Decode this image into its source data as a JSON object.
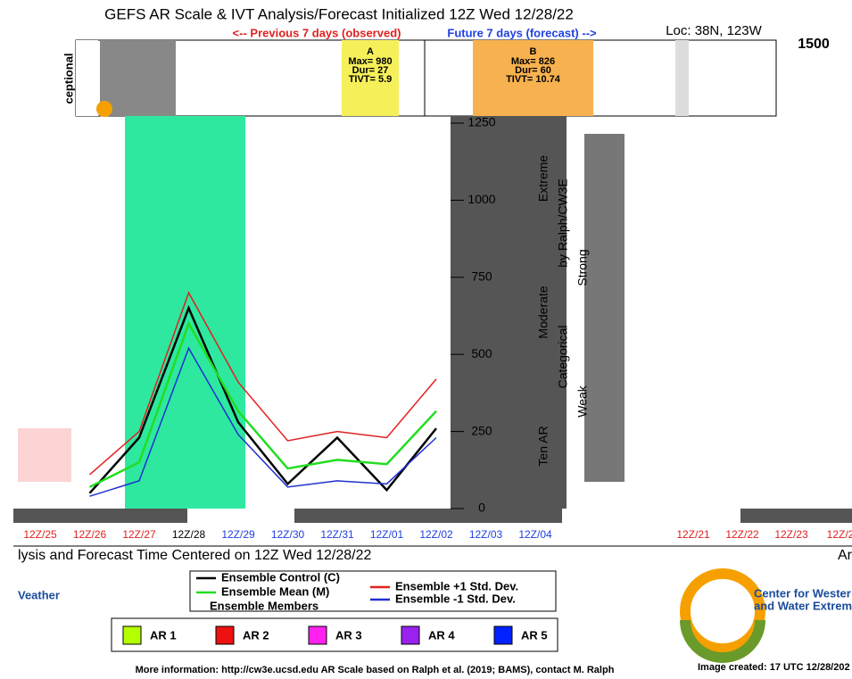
{
  "chart_data": {
    "type": "line",
    "title": "GEFS AR Scale & IVT Analysis/Forecast Initialized 12Z Wed 12/28/22",
    "previous_label": "<-- Previous 7 days (observed)",
    "future_label": "Future 7 days (forecast) -->",
    "location": "Loc: 38N, 123W",
    "top_axis_tick": 1500,
    "left_panel_label": "ceptional",
    "annotations": [
      {
        "letter": "A",
        "lines": [
          "Max= 980",
          "Dur= 27",
          "TIVT= 5.9"
        ],
        "color": "#f5f05a"
      },
      {
        "letter": "B",
        "lines": [
          "Max= 826",
          "Dur= 60",
          "TIVT= 10.74"
        ],
        "color": "#f7b24f"
      }
    ],
    "categories": [
      "12Z/25",
      "12Z/26",
      "12Z/27",
      "12Z/28",
      "12Z/29",
      "12Z/30",
      "12Z/31",
      "12Z/01",
      "12Z/02",
      "12Z/03",
      "12Z/04"
    ],
    "category_colors": [
      "#e02020",
      "#e02020",
      "#e02020",
      "#000000",
      "#2040e0",
      "#2040e0",
      "#2040e0",
      "#2040e0",
      "#2040e0",
      "#2040e0",
      "#2040e0"
    ],
    "right_panel_categories": [
      "12Z/21",
      "12Z/22",
      "12Z/23",
      "12Z/2"
    ],
    "right_panel_labels": [
      "Extreme",
      "by Ralph/CW3E",
      "Strong",
      "Moderate",
      "Categorical",
      "Weak",
      "Ten AR"
    ],
    "x_label": "lysis and Forecast Time Centered on 12Z Wed 12/28/22",
    "x_label_right": "Ar",
    "ylim": [
      0,
      1250
    ],
    "yticks": [
      0,
      250,
      500,
      750,
      1000,
      1250
    ],
    "series": [
      {
        "name": "Ensemble Control (C)",
        "color": "#000000",
        "values": [
          null,
          50,
          230,
          650,
          280,
          80,
          230,
          60,
          260,
          null,
          null
        ]
      },
      {
        "name": "Ensemble Mean (M)",
        "color": "#22dd22",
        "values": [
          null,
          70,
          150,
          600,
          316,
          130,
          158,
          144,
          316,
          null,
          null
        ]
      },
      {
        "name": "Ensemble +1 Std. Dev.",
        "color": "#e02020",
        "values": [
          null,
          110,
          250,
          700,
          410,
          220,
          250,
          230,
          420,
          null,
          null
        ]
      },
      {
        "name": "Ensemble -1 Std. Dev.",
        "color": "#2030d0",
        "values": [
          null,
          40,
          90,
          520,
          240,
          70,
          90,
          80,
          230,
          null,
          null
        ]
      }
    ],
    "members_label": "Ensemble Members",
    "ar_scale": [
      {
        "name": "AR 1",
        "color": "#b4ff00"
      },
      {
        "name": "AR 2",
        "color": "#ee1111"
      },
      {
        "name": "AR 3",
        "color": "#ff22ee"
      },
      {
        "name": "AR 4",
        "color": "#9922ee"
      },
      {
        "name": "AR 5",
        "color": "#0022ff"
      }
    ],
    "left_logo_text": "Veather",
    "right_logo_lines": [
      "Center for Wester",
      "and Water Extrem"
    ],
    "footer": "More information: http://cw3e.ucsd.edu  AR Scale based on Ralph et al. (2019; BAMS), contact M. Ralph",
    "created": "Image created: 17 UTC 12/28/202"
  }
}
